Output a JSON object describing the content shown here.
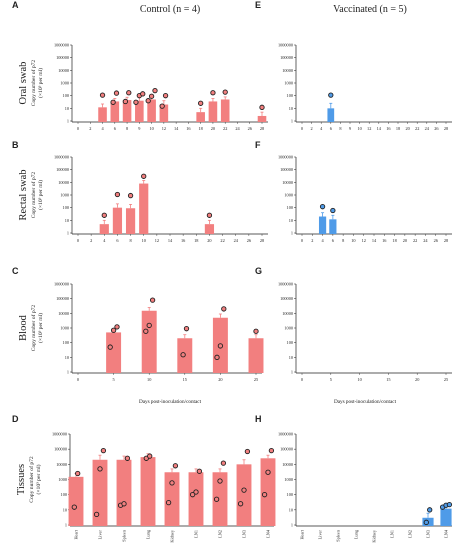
{
  "header": {
    "left_title": "Control (n = 4)",
    "right_title": "Vaccinated (n = 5)"
  },
  "ylabel_line1": "Copy number of p72",
  "ylabel_line2": "(×10³ per ml)",
  "ylabel_line2_tissue": "(×10³ per ml)",
  "xlabel_days": "Days post-inoculation/contact",
  "colors": {
    "control": "#f27f7f",
    "vaccinated": "#4f9be8",
    "error": "#4f9be8",
    "marker": "#222222"
  },
  "chart_data": [
    {
      "panel": "A",
      "type": "bar",
      "row_label": "Oral swab",
      "group": "Control",
      "yscale": "log",
      "ylim": [
        1,
        1000000
      ],
      "y_ticks": [
        "1000000",
        "100000",
        "10000",
        "1000",
        "100",
        "10",
        "1"
      ],
      "x_ticks": [
        "0",
        "2",
        "4",
        "6",
        "8",
        "9",
        "10",
        "12",
        "14",
        "16",
        "18",
        "20",
        "22",
        "24",
        "26",
        "28"
      ],
      "bars": [
        {
          "x": "4",
          "value": 12,
          "err": 22,
          "points": [
            110
          ]
        },
        {
          "x": "6",
          "value": 35,
          "err": 60,
          "points": [
            30,
            160
          ]
        },
        {
          "x": "8",
          "value": 45,
          "err": 75,
          "points": [
            35,
            170
          ]
        },
        {
          "x": "9",
          "value": 40,
          "err": 70,
          "points": [
            30,
            100,
            140
          ]
        },
        {
          "x": "10",
          "value": 50,
          "err": 80,
          "points": [
            40,
            90,
            250
          ]
        },
        {
          "x": "12",
          "value": 20,
          "err": 40,
          "points": [
            15,
            100
          ]
        },
        {
          "x": "18",
          "value": 5,
          "err": 10,
          "points": [
            25
          ]
        },
        {
          "x": "20",
          "value": 35,
          "err": 60,
          "points": [
            170
          ]
        },
        {
          "x": "22",
          "value": 50,
          "err": 80,
          "points": [
            190
          ]
        },
        {
          "x": "28",
          "value": 2.5,
          "err": 5,
          "points": [
            12
          ]
        }
      ]
    },
    {
      "panel": "E",
      "type": "bar",
      "group": "Vaccinated",
      "yscale": "log",
      "ylim": [
        1,
        1000000
      ],
      "y_ticks": [
        "1000000",
        "100000",
        "10000",
        "1000",
        "100",
        "10",
        "1"
      ],
      "x_ticks": [
        "0",
        "2",
        "4",
        "6",
        "8",
        "9",
        "10",
        "12",
        "14",
        "16",
        "18",
        "20",
        "22",
        "24",
        "26",
        "28"
      ],
      "bars": [
        {
          "x": "6",
          "value": 10,
          "err": 25,
          "points": [
            110
          ]
        }
      ]
    },
    {
      "panel": "B",
      "type": "bar",
      "row_label": "Rectal swab",
      "group": "Control",
      "yscale": "log",
      "ylim": [
        1,
        1000000
      ],
      "y_ticks": [
        "1000000",
        "100000",
        "10000",
        "1000",
        "100",
        "10",
        "1"
      ],
      "x_ticks": [
        "0",
        "2",
        "4",
        "6",
        "8",
        "10",
        "12",
        "14",
        "16",
        "18",
        "20",
        "22",
        "24",
        "26",
        "28"
      ],
      "bars": [
        {
          "x": "4",
          "value": 5,
          "err": 10,
          "points": [
            25
          ]
        },
        {
          "x": "6",
          "value": 100,
          "err": 200,
          "points": [
            1100
          ]
        },
        {
          "x": "8",
          "value": 90,
          "err": 180,
          "points": [
            900
          ]
        },
        {
          "x": "10",
          "value": 8000,
          "err": 14000,
          "points": [
            30000
          ]
        },
        {
          "x": "20",
          "value": 5,
          "err": 10,
          "points": [
            25
          ]
        }
      ]
    },
    {
      "panel": "F",
      "type": "bar",
      "group": "Vaccinated",
      "yscale": "log",
      "ylim": [
        1,
        1000000
      ],
      "y_ticks": [
        "1000000",
        "100000",
        "10000",
        "1000",
        "100",
        "10",
        "1"
      ],
      "x_ticks": [
        "0",
        "2",
        "4",
        "6",
        "8",
        "10",
        "12",
        "14",
        "16",
        "18",
        "20",
        "22",
        "24",
        "26",
        "28"
      ],
      "bars": [
        {
          "x": "4",
          "value": 20,
          "err": 40,
          "points": [
            120
          ]
        },
        {
          "x": "6",
          "value": 12,
          "err": 25,
          "points": [
            60
          ]
        }
      ]
    },
    {
      "panel": "C",
      "type": "bar",
      "row_label": "Blood",
      "group": "Control",
      "yscale": "log",
      "ylim": [
        1,
        1000000
      ],
      "y_ticks": [
        "1000000",
        "100000",
        "10000",
        "1000",
        "100",
        "10",
        "1"
      ],
      "x_ticks": [
        "0",
        "5",
        "10",
        "15",
        "20",
        "25"
      ],
      "bars": [
        {
          "x": "5",
          "value": 500,
          "err": 900,
          "points": [
            50,
            700,
            1200
          ]
        },
        {
          "x": "10",
          "value": 15000,
          "err": 25000,
          "points": [
            600,
            1500,
            80000
          ]
        },
        {
          "x": "15",
          "value": 200,
          "err": 350,
          "points": [
            15,
            900
          ]
        },
        {
          "x": "20",
          "value": 5000,
          "err": 9000,
          "points": [
            10,
            60,
            20000
          ]
        },
        {
          "x": "25",
          "value": 200,
          "err": 350,
          "points": [
            600
          ]
        }
      ]
    },
    {
      "panel": "G",
      "type": "bar",
      "group": "Vaccinated",
      "yscale": "log",
      "ylim": [
        1,
        1000000
      ],
      "y_ticks": [
        "1000000",
        "100000",
        "10000",
        "1000",
        "100",
        "10",
        "1"
      ],
      "x_ticks": [
        "0",
        "5",
        "10",
        "15",
        "20",
        "25"
      ],
      "bars": []
    },
    {
      "panel": "D",
      "type": "bar",
      "row_label": "Tissues",
      "group": "Control",
      "yscale": "log",
      "ylim": [
        1,
        1000000
      ],
      "y_ticks": [
        "1000000",
        "100000",
        "10000",
        "1000",
        "100",
        "10",
        "1"
      ],
      "categories": [
        "Heart",
        "Liver",
        "Spleen",
        "Lung",
        "Kidney",
        "LN1",
        "LN2",
        "LN3",
        "LN4"
      ],
      "bars": [
        {
          "x": "Heart",
          "value": 1500,
          "err": 2500,
          "points": [
            15,
            2500
          ]
        },
        {
          "x": "Liver",
          "value": 20000,
          "err": 40000,
          "points": [
            5,
            5000,
            80000
          ]
        },
        {
          "x": "Spleen",
          "value": 20000,
          "err": 35000,
          "points": [
            20,
            25,
            25000
          ]
        },
        {
          "x": "Lung",
          "value": 30000,
          "err": 50000,
          "points": [
            25000,
            35000
          ]
        },
        {
          "x": "Kidney",
          "value": 3000,
          "err": 5000,
          "points": [
            30,
            600,
            8000
          ]
        },
        {
          "x": "LN1",
          "value": 3000,
          "err": 5000,
          "points": [
            100,
            150,
            3500
          ]
        },
        {
          "x": "LN2",
          "value": 3000,
          "err": 5000,
          "points": [
            50,
            800,
            12000
          ]
        },
        {
          "x": "LN3",
          "value": 10000,
          "err": 20000,
          "points": [
            25,
            200,
            70000
          ]
        },
        {
          "x": "LN4",
          "value": 25000,
          "err": 40000,
          "points": [
            100,
            3000,
            80000
          ]
        }
      ]
    },
    {
      "panel": "H",
      "type": "bar",
      "group": "Vaccinated",
      "yscale": "log",
      "ylim": [
        1,
        1000000
      ],
      "y_ticks": [
        "1000000",
        "100000",
        "10000",
        "1000",
        "100",
        "10",
        "1"
      ],
      "categories": [
        "Heart",
        "Liver",
        "Spleen",
        "Lung",
        "Kidney",
        "LN1",
        "LN2",
        "LN3",
        "LN4"
      ],
      "bars": [
        {
          "x": "LN3",
          "value": 3,
          "err": 6,
          "points": [
            1.5,
            10
          ]
        },
        {
          "x": "LN4",
          "value": 12,
          "err": 20,
          "points": [
            15,
            20,
            22
          ]
        }
      ]
    }
  ]
}
